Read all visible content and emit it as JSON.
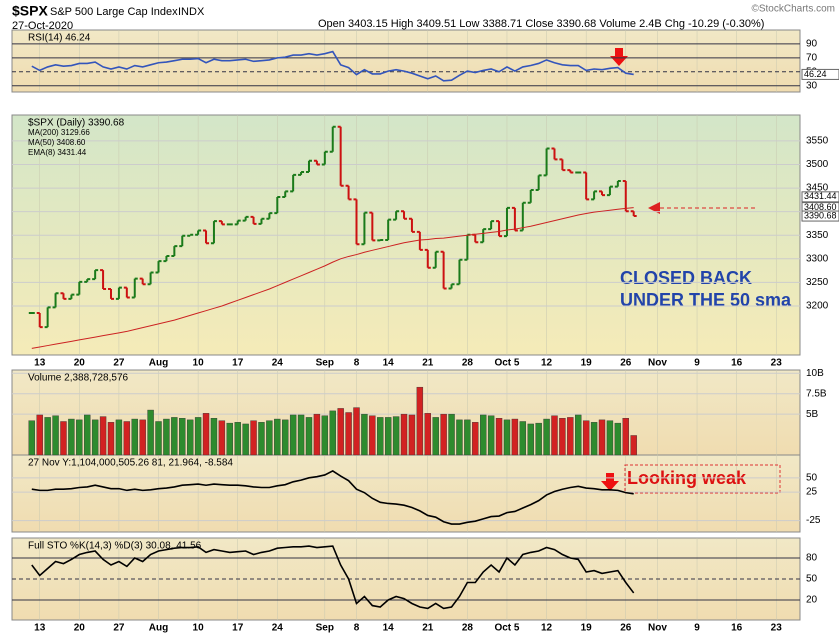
{
  "header": {
    "symbol": "$SPX",
    "name": "S&P 500 Large Cap Index",
    "exchange": "INDX",
    "date": "27-Oct-2020",
    "quote": "Open 3403.15  High 3409.51  Low 3388.71  Close 3390.68  Volume 2.4B  Chg -10.29 (-0.30%)",
    "credit": "©StockCharts.com"
  },
  "annotations": {
    "closed": [
      "CLOSED BACK",
      "UNDER THE 50 sma"
    ],
    "weak": "Looking weak"
  },
  "chart_data": [
    {
      "type": "line",
      "legend": [
        "RSI(14) 46.24"
      ],
      "ylim": [
        21,
        110
      ],
      "yticks": [
        30,
        50,
        70,
        90
      ],
      "tags": [
        {
          "value": 46.24,
          "label": "46.24"
        }
      ],
      "series": [
        {
          "name": "RSI(14)",
          "color": "#3355bb",
          "values": [
            58,
            52,
            57,
            60,
            58,
            59,
            62,
            62,
            64,
            57,
            54,
            57,
            54,
            59,
            57,
            60,
            63,
            64,
            66,
            68,
            68,
            69,
            63,
            68,
            66,
            66,
            67,
            68,
            65,
            66,
            67,
            70,
            71,
            74,
            74,
            76,
            74,
            76,
            79,
            60,
            56,
            46,
            53,
            47,
            47,
            51,
            53,
            51,
            48,
            44,
            40,
            44,
            37,
            38,
            45,
            51,
            49,
            52,
            54,
            50,
            57,
            51,
            57,
            59,
            62,
            67,
            63,
            60,
            59,
            59,
            52,
            54,
            53,
            55,
            56,
            48,
            46.24
          ]
        }
      ]
    },
    {
      "type": "ohlc",
      "legend": [
        "$SPX (Daily) 3390.68",
        "MA(200) 3129.66",
        "MA(50) 3408.60",
        "EMA(8) 3431.44"
      ],
      "ylim": [
        3096,
        3605
      ],
      "yticks": [
        3200,
        3250,
        3300,
        3350,
        3400,
        3450,
        3500,
        3550
      ],
      "tags": [
        {
          "value": 3431.44,
          "label": "3431.44"
        },
        {
          "value": 3408.6,
          "label": "3408.60"
        },
        {
          "value": 3390.68,
          "label": "3390.68"
        }
      ],
      "xlim": [
        -2.5,
        97
      ],
      "xticks": [
        {
          "value": 1,
          "label": "13"
        },
        {
          "value": 6,
          "label": "20"
        },
        {
          "value": 11,
          "label": "27"
        },
        {
          "value": 16,
          "label": "Aug"
        },
        {
          "value": 21,
          "label": "10"
        },
        {
          "value": 26,
          "label": "17"
        },
        {
          "value": 31,
          "label": "24"
        },
        {
          "value": 37,
          "label": "Sep"
        },
        {
          "value": 41,
          "label": "8"
        },
        {
          "value": 45,
          "label": "14"
        },
        {
          "value": 50,
          "label": "21"
        },
        {
          "value": 55,
          "label": "28"
        },
        {
          "value": 60,
          "label": "Oct 5"
        },
        {
          "value": 65,
          "label": "12"
        },
        {
          "value": 70,
          "label": "19"
        },
        {
          "value": 75,
          "label": "26"
        },
        {
          "value": 79,
          "label": "Nov"
        },
        {
          "value": 84,
          "label": "9"
        },
        {
          "value": 89,
          "label": "16"
        },
        {
          "value": 94,
          "label": "23"
        }
      ],
      "series": [
        {
          "name": "$SPX",
          "color": "#1a7a1a",
          "down_color": "#cc1111",
          "values": [
            3185,
            3155,
            3197,
            3227,
            3215,
            3224,
            3251,
            3257,
            3276,
            3236,
            3215,
            3239,
            3218,
            3258,
            3246,
            3271,
            3295,
            3306,
            3327,
            3349,
            3351,
            3360,
            3333,
            3380,
            3373,
            3373,
            3381,
            3389,
            3374,
            3385,
            3397,
            3431,
            3443,
            3478,
            3484,
            3508,
            3500,
            3527,
            3580,
            3455,
            3426,
            3331,
            3398,
            3339,
            3340,
            3383,
            3401,
            3385,
            3357,
            3319,
            3281,
            3315,
            3237,
            3246,
            3298,
            3351,
            3335,
            3363,
            3380,
            3348,
            3408,
            3360,
            3419,
            3446,
            3477,
            3534,
            3511,
            3488,
            3483,
            3483,
            3426,
            3443,
            3435,
            3453,
            3465,
            3401,
            3390.68
          ]
        },
        {
          "name": "MA(50)",
          "color": "#cc2222",
          "values": [
            3110,
            3113,
            3116,
            3119,
            3122,
            3125,
            3128,
            3131,
            3134,
            3137,
            3140,
            3143,
            3146,
            3150,
            3154,
            3158,
            3162,
            3166,
            3170,
            3175,
            3180,
            3185,
            3190,
            3195,
            3200,
            3206,
            3212,
            3218,
            3224,
            3230,
            3236,
            3243,
            3250,
            3257,
            3264,
            3271,
            3278,
            3285,
            3293,
            3300,
            3305,
            3309,
            3314,
            3318,
            3322,
            3326,
            3330,
            3334,
            3337,
            3340,
            3341,
            3343,
            3344,
            3346,
            3348,
            3350,
            3352,
            3354,
            3356,
            3358,
            3361,
            3363,
            3366,
            3369,
            3373,
            3377,
            3381,
            3385,
            3389,
            3393,
            3396,
            3399,
            3401,
            3403,
            3405,
            3407,
            3408.6
          ]
        }
      ]
    },
    {
      "type": "bar",
      "legend": [
        "Volume 2,388,728,576"
      ],
      "ylim": [
        0,
        10.4
      ],
      "yticks": [
        {
          "value": 5,
          "label": "5B"
        },
        {
          "value": 7.5,
          "label": "7.5B"
        },
        {
          "value": 10,
          "label": "10B"
        }
      ],
      "series": [
        {
          "name": "Volume",
          "color": "#2e8b2e",
          "down_color": "#d22222",
          "values": [
            4.2,
            4.9,
            4.6,
            4.8,
            4.1,
            4.4,
            4.3,
            4.9,
            4.3,
            4.7,
            4.0,
            4.3,
            4.1,
            4.4,
            4.3,
            5.5,
            4.1,
            4.4,
            4.6,
            4.5,
            4.3,
            4.6,
            5.1,
            4.5,
            4.2,
            3.9,
            4.0,
            3.8,
            4.2,
            4.0,
            4.2,
            4.4,
            4.3,
            4.9,
            4.9,
            4.6,
            5.0,
            4.8,
            5.4,
            5.7,
            5.2,
            5.8,
            5.0,
            4.8,
            4.6,
            4.6,
            4.7,
            5.0,
            4.9,
            8.3,
            5.1,
            4.6,
            5.0,
            5.0,
            4.3,
            4.3,
            4.0,
            4.9,
            4.8,
            4.5,
            4.3,
            4.4,
            4.1,
            3.8,
            3.9,
            4.4,
            4.8,
            4.5,
            4.6,
            4.9,
            4.2,
            4.0,
            4.3,
            4.2,
            3.9,
            4.5,
            2.39
          ]
        }
      ]
    },
    {
      "type": "line",
      "legend": [
        "27 Nov Y:1,104,000,505.26  81, 21.964, -8.584"
      ],
      "ylim": [
        -45,
        90
      ],
      "yticks": [
        -25,
        25,
        50
      ],
      "series": [
        {
          "name": "MACD",
          "color": "#000000",
          "values": [
            30,
            28,
            28,
            30,
            30,
            31,
            33,
            34,
            37,
            34,
            31,
            31,
            28,
            30,
            28,
            29,
            31,
            32,
            34,
            37,
            38,
            39,
            37,
            39,
            38,
            37,
            37,
            36,
            34,
            33,
            33,
            36,
            38,
            43,
            46,
            50,
            52,
            55,
            62,
            53,
            45,
            30,
            24,
            14,
            7,
            5,
            4,
            2,
            -2,
            -8,
            -16,
            -19,
            -27,
            -31,
            -31,
            -28,
            -26,
            -22,
            -18,
            -17,
            -11,
            -9,
            -3,
            3,
            10,
            20,
            26,
            30,
            33,
            35,
            32,
            31,
            29,
            29,
            28,
            24,
            21.964
          ]
        }
      ]
    },
    {
      "type": "line",
      "legend": [
        "Full STO %K(14,3) %D(3) 30.08, 41.56"
      ],
      "ylim": [
        -8.6,
        108.6
      ],
      "yticks": [
        20,
        50,
        80
      ],
      "xticks_ref": true,
      "series": [
        {
          "name": "%K",
          "color": "#000000",
          "values": [
            70,
            55,
            65,
            75,
            72,
            78,
            85,
            88,
            90,
            78,
            70,
            75,
            68,
            80,
            75,
            85,
            90,
            92,
            94,
            95,
            95,
            96,
            88,
            92,
            90,
            88,
            89,
            90,
            85,
            88,
            90,
            94,
            95,
            96,
            96,
            97,
            95,
            96,
            97,
            70,
            50,
            15,
            25,
            12,
            10,
            20,
            25,
            22,
            15,
            10,
            8,
            15,
            8,
            10,
            25,
            45,
            45,
            60,
            70,
            60,
            80,
            70,
            85,
            88,
            90,
            95,
            92,
            85,
            80,
            78,
            60,
            62,
            58,
            60,
            62,
            45,
            30.08
          ]
        }
      ]
    }
  ]
}
